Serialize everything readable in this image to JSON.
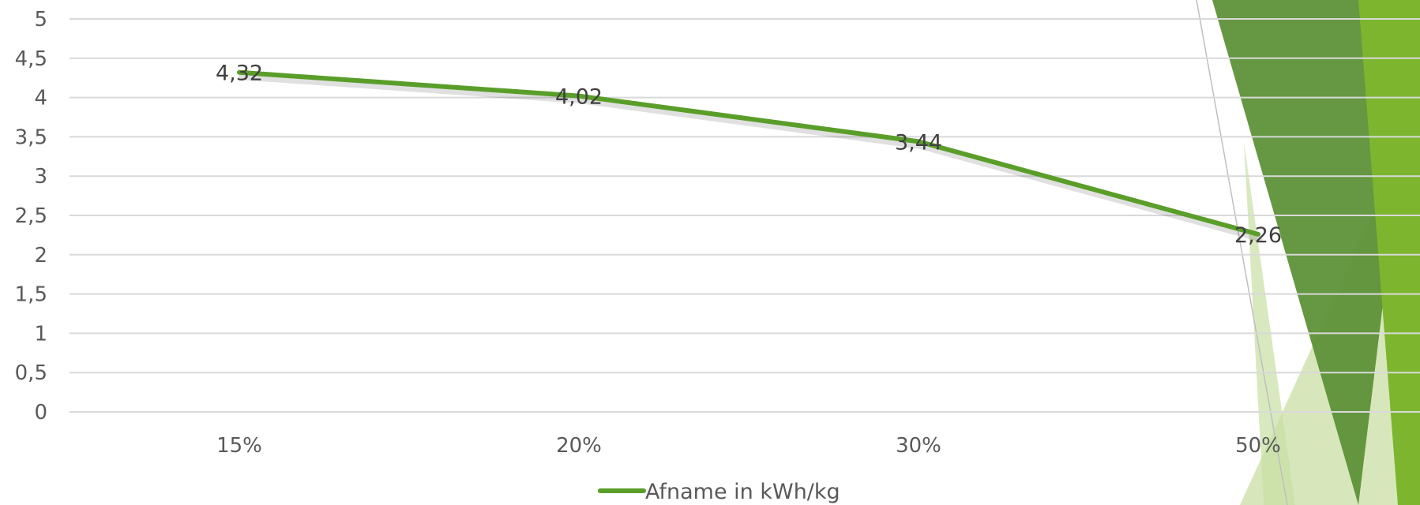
{
  "chart_data": {
    "type": "line",
    "categories": [
      "15%",
      "20%",
      "30%",
      "50%"
    ],
    "series": [
      {
        "name": "Afname in kWh/kg",
        "values": [
          4.32,
          4.02,
          3.44,
          2.26
        ],
        "labels": [
          "4,32",
          "4,02",
          "3,44",
          "2,26"
        ],
        "color": "#5A9E2A"
      }
    ],
    "y_ticks": [
      "0",
      "0,5",
      "1",
      "1,5",
      "2",
      "2,5",
      "3",
      "3,5",
      "4",
      "4,5",
      "5"
    ],
    "ylim": [
      0,
      5
    ],
    "grid": true,
    "legend_position": "bottom"
  },
  "colors": {
    "grid": "#d9d9d9",
    "decor_dark": "#5E9138",
    "decor_bright": "#7DB52E",
    "decor_light": "#C9DFA4"
  }
}
